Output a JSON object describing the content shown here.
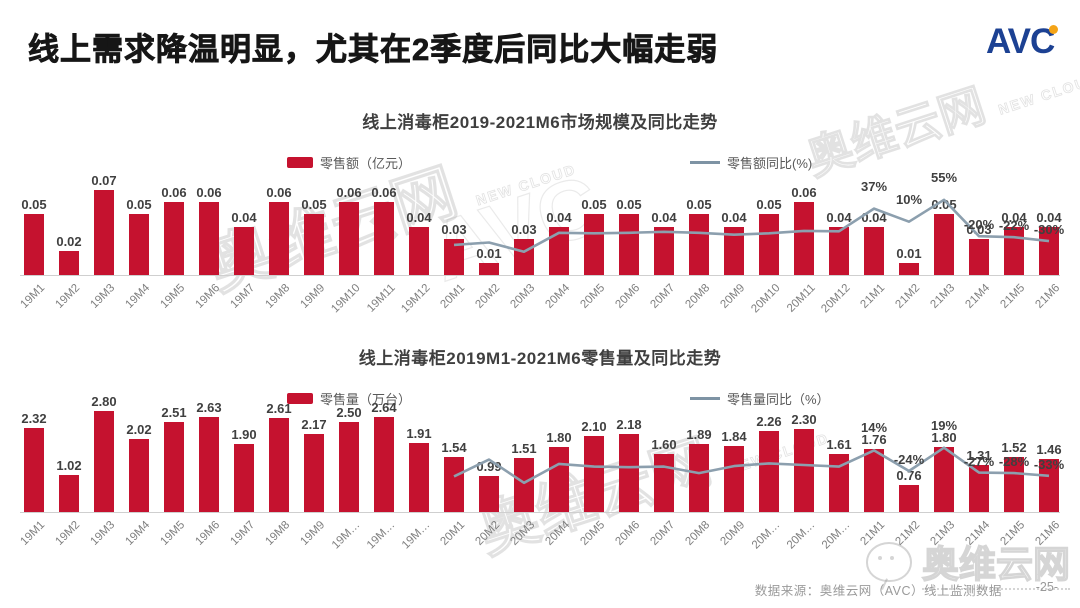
{
  "header": {
    "title": "线上需求降温明显，尤其在2季度后同比大幅走弱",
    "logo_text": "AVC"
  },
  "footer": {
    "source": "数据来源：奥维云网（AVC）线上监测数据",
    "page": "-25-"
  },
  "watermark": {
    "brand": "奥维云网",
    "cloud": "NEW CLOUD",
    "logo": "AVC",
    "wechat_brand": "奥维云网"
  },
  "colors": {
    "bar": "#C5122F",
    "line": "#8C9FAE",
    "legend_line": "#7E93A4"
  },
  "chart_data": [
    {
      "type": "bar",
      "title": "线上消毒柜2019-2021M6市场规模及同比走势",
      "bar_legend": "零售额（亿元）",
      "line_legend": "零售额同比(%)",
      "decimals": 2,
      "ylim": [
        0,
        0.08
      ],
      "line_axis_range": [
        -100,
        100
      ],
      "categories": [
        "19M1",
        "19M2",
        "19M3",
        "19M4",
        "19M5",
        "19M6",
        "19M7",
        "19M8",
        "19M9",
        "19M10",
        "19M11",
        "19M12",
        "20M1",
        "20M2",
        "20M3",
        "20M4",
        "20M5",
        "20M6",
        "20M7",
        "20M8",
        "20M9",
        "20M10",
        "20M11",
        "20M12",
        "21M1",
        "21M2",
        "21M3",
        "21M4",
        "21M5",
        "21M6"
      ],
      "values": [
        0.05,
        0.02,
        0.07,
        0.05,
        0.06,
        0.06,
        0.04,
        0.06,
        0.05,
        0.06,
        0.06,
        0.04,
        0.03,
        0.01,
        0.03,
        0.04,
        0.05,
        0.05,
        0.04,
        0.05,
        0.04,
        0.05,
        0.06,
        0.04,
        0.04,
        0.01,
        0.05,
        0.03,
        0.04,
        0.04
      ],
      "line": {
        "start_category": "20M1",
        "start_index": 12,
        "values": [
          -38,
          -33,
          -52,
          -13,
          -14,
          -13,
          -11,
          -13,
          -17,
          -14,
          -9,
          -10,
          37,
          10,
          55,
          -20,
          -22,
          -30
        ],
        "labels": [
          "",
          "",
          "",
          "",
          "",
          "",
          "",
          "",
          "",
          "",
          "",
          "",
          "37%",
          "10%",
          "55%",
          "-20%",
          "-22%",
          "-30%"
        ]
      }
    },
    {
      "type": "bar",
      "title": "线上消毒柜2019M1-2021M6零售量及同比走势",
      "bar_legend": "零售量（万台）",
      "line_legend": "零售量同比（%）",
      "decimals": 2,
      "ylim": [
        0,
        3.0
      ],
      "line_axis_range": [
        -100,
        100
      ],
      "categories": [
        "19M1",
        "19M2",
        "19M3",
        "19M4",
        "19M5",
        "19M6",
        "19M7",
        "19M8",
        "19M9",
        "19M…",
        "19M…",
        "19M…",
        "20M1",
        "20M2",
        "20M3",
        "20M4",
        "20M5",
        "20M6",
        "20M7",
        "20M8",
        "20M9",
        "20M…",
        "20M…",
        "20M…",
        "21M1",
        "21M2",
        "21M3",
        "21M4",
        "21M5",
        "21M6"
      ],
      "values": [
        2.32,
        1.02,
        2.8,
        2.02,
        2.51,
        2.63,
        1.9,
        2.61,
        2.17,
        2.5,
        2.64,
        1.91,
        1.54,
        0.99,
        1.51,
        1.8,
        2.1,
        2.18,
        1.6,
        1.89,
        1.84,
        2.26,
        2.3,
        1.61,
        1.76,
        0.76,
        1.8,
        1.31,
        1.52,
        1.46
      ],
      "line": {
        "start_category": "20M1",
        "start_index": 12,
        "values": [
          -34,
          -3,
          -46,
          -11,
          -16,
          -17,
          -16,
          -28,
          -15,
          -10,
          -13,
          -16,
          14,
          -24,
          19,
          -27,
          -28,
          -33
        ],
        "labels": [
          "",
          "",
          "",
          "",
          "",
          "",
          "",
          "",
          "",
          "",
          "",
          "",
          "14%",
          "-24%",
          "19%",
          "-27%",
          "-28%",
          "-33%"
        ]
      }
    }
  ]
}
